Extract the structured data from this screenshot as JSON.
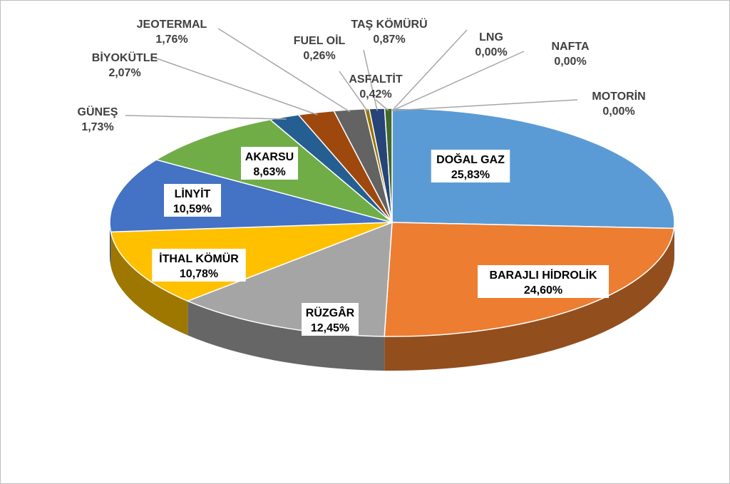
{
  "chart_data": {
    "type": "pie",
    "style": "3d-exploded-slices",
    "title": "",
    "categories": [
      "DOĞAL GAZ",
      "BARAJLI HİDROLİK",
      "RÜZGÂR",
      "İTHAL KÖMÜR",
      "LİNYİT",
      "AKARSU",
      "GÜNEŞ",
      "BİYOKÜTLE",
      "JEOTERMAL",
      "FUEL OİL",
      "TAŞ KÖMÜRÜ",
      "ASFALTİT",
      "LNG",
      "NAFTA",
      "MOTORİN"
    ],
    "values": [
      25.83,
      24.6,
      12.45,
      10.78,
      10.59,
      8.63,
      1.73,
      2.07,
      1.76,
      0.26,
      0.87,
      0.42,
      0.0,
      0.0,
      0.0
    ],
    "value_labels": [
      "25,83%",
      "24,60%",
      "12,45%",
      "10,78%",
      "10,59%",
      "8,63%",
      "1,73%",
      "2,07%",
      "1,76%",
      "0,26%",
      "0,87%",
      "0,42%",
      "0,00%",
      "0,00%",
      "0,00%"
    ],
    "colors": [
      "#5b9bd5",
      "#ed7d31",
      "#a5a5a5",
      "#ffc000",
      "#4472c4",
      "#70ad47",
      "#255e91",
      "#9e480e",
      "#636363",
      "#997300",
      "#264478",
      "#43682b",
      "#7cafdd",
      "#f1975a",
      "#b7b7b7"
    ],
    "slice_order": [
      0,
      1,
      2,
      3,
      4,
      5,
      6,
      7,
      8,
      9,
      10,
      11,
      12,
      13,
      14
    ],
    "legend": "none",
    "data_labels": "category-and-percent"
  }
}
